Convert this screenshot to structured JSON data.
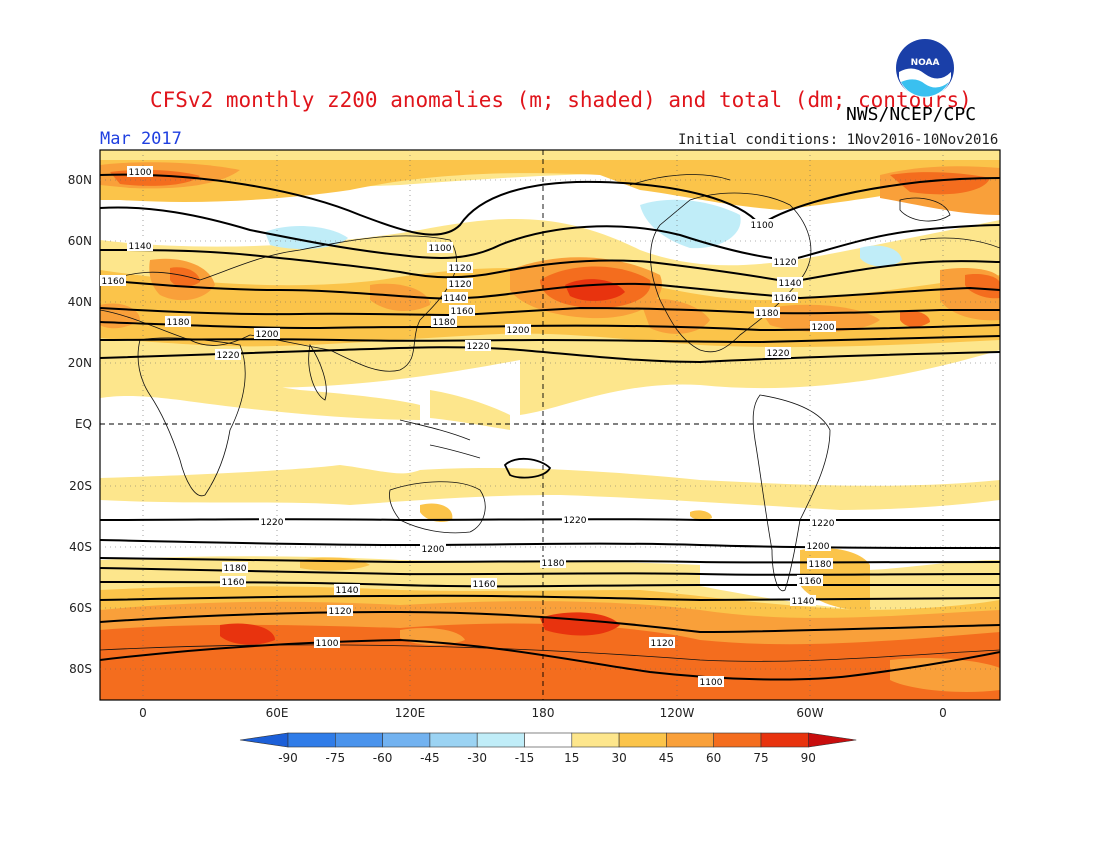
{
  "header": {
    "title": "CFSv2 monthly z200 anomalies (m; shaded) and total (dm; contours)",
    "agency": "NWS/NCEP/CPC",
    "month": "Mar 2017",
    "initial_conditions": "Initial conditions: 1Nov2016-10Nov2016",
    "logo_text": "NOAA"
  },
  "axes": {
    "lat_ticks": [
      "80N",
      "60N",
      "40N",
      "20N",
      "EQ",
      "20S",
      "40S",
      "60S",
      "80S"
    ],
    "lon_ticks": [
      "0",
      "60E",
      "120E",
      "180",
      "120W",
      "60W",
      "0"
    ]
  },
  "colorbar": {
    "ticks": [
      "-90",
      "-75",
      "-60",
      "-45",
      "-30",
      "-15",
      "15",
      "30",
      "45",
      "60",
      "75",
      "90"
    ],
    "colors": [
      "#1c5fd8",
      "#2f7ce8",
      "#4a93ec",
      "#72b2f0",
      "#9bd3f3",
      "#c0edf8",
      "#ffffff",
      "#fde68c",
      "#fbc44a",
      "#f9a03a",
      "#f46d1e",
      "#e8330e",
      "#c80d0d"
    ]
  },
  "contours": {
    "labels": [
      "1100",
      "1120",
      "1140",
      "1160",
      "1180",
      "1200",
      "1220"
    ]
  }
}
